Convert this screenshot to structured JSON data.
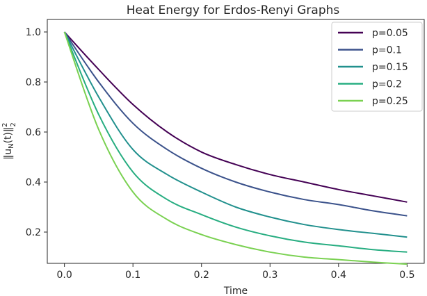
{
  "chart_data": {
    "type": "line",
    "title": "Heat Energy for Erdos-Renyi Graphs",
    "xlabel": "Time",
    "ylabel": "||u_N(t)||_2^2",
    "xlim": [
      -0.025,
      0.525
    ],
    "ylim": [
      0.075,
      1.05
    ],
    "xticks": [
      0.0,
      0.1,
      0.2,
      0.3,
      0.4,
      0.5
    ],
    "xtick_labels": [
      "0.0",
      "0.1",
      "0.2",
      "0.3",
      "0.4",
      "0.5"
    ],
    "yticks": [
      0.2,
      0.4,
      0.6,
      0.8,
      1.0
    ],
    "ytick_labels": [
      "0.2",
      "0.4",
      "0.6",
      "0.8",
      "1.0"
    ],
    "legend_position": "top-right",
    "grid": false,
    "x": [
      0.0,
      0.05,
      0.1,
      0.15,
      0.2,
      0.25,
      0.3,
      0.35,
      0.4,
      0.45,
      0.5
    ],
    "series": [
      {
        "name": "p=0.05",
        "color": "#440154",
        "values": [
          1.0,
          0.85,
          0.71,
          0.6,
          0.52,
          0.47,
          0.43,
          0.4,
          0.37,
          0.345,
          0.32
        ]
      },
      {
        "name": "p=0.1",
        "color": "#3b528b",
        "values": [
          1.0,
          0.8,
          0.635,
          0.53,
          0.455,
          0.4,
          0.36,
          0.33,
          0.31,
          0.285,
          0.265
        ]
      },
      {
        "name": "p=0.15",
        "color": "#21908d",
        "values": [
          1.0,
          0.74,
          0.53,
          0.43,
          0.36,
          0.3,
          0.26,
          0.23,
          0.21,
          0.195,
          0.18
        ]
      },
      {
        "name": "p=0.2",
        "color": "#27ad81",
        "values": [
          1.0,
          0.67,
          0.44,
          0.33,
          0.27,
          0.22,
          0.185,
          0.16,
          0.145,
          0.13,
          0.12
        ]
      },
      {
        "name": "p=0.25",
        "color": "#7ad151",
        "values": [
          1.0,
          0.61,
          0.36,
          0.25,
          0.19,
          0.15,
          0.12,
          0.1,
          0.09,
          0.08,
          0.072
        ]
      }
    ]
  }
}
